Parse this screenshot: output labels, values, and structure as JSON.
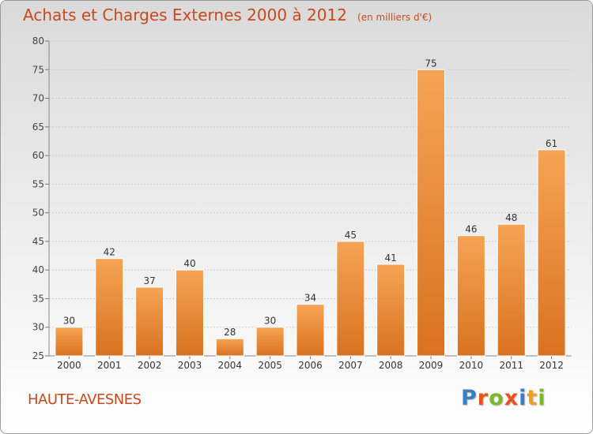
{
  "title": "Achats et Charges Externes 2000 à 2012",
  "unit_note": "(en milliers d'€)",
  "location": "HAUTE-AVESNES",
  "logo": {
    "text": "Proxiti",
    "colors": [
      "#3a7fc4",
      "#e8541e",
      "#7ab82c",
      "#e8541e",
      "#3a7fc4",
      "#f0a020",
      "#7ab82c"
    ]
  },
  "colors": {
    "bar_top": "#f5a454",
    "bar_bottom": "#d9721f",
    "title": "#c74a1e",
    "grid": "#cccccc"
  },
  "chart_data": {
    "type": "bar",
    "categories": [
      "2000",
      "2001",
      "2002",
      "2003",
      "2004",
      "2005",
      "2006",
      "2007",
      "2008",
      "2009",
      "2010",
      "2011",
      "2012"
    ],
    "values": [
      30,
      42,
      37,
      40,
      28,
      30,
      34,
      45,
      41,
      75,
      46,
      48,
      61
    ],
    "ylim": [
      25,
      80
    ],
    "yticks": [
      25,
      30,
      35,
      40,
      45,
      50,
      55,
      60,
      65,
      70,
      75,
      80
    ],
    "grid": true
  }
}
